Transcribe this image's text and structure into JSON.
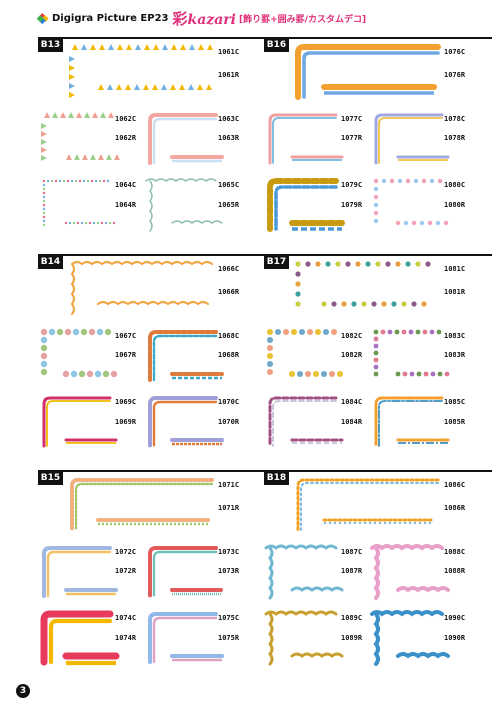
{
  "header": {
    "brand": "Digigra Picture EP23",
    "title_kanji": "彩",
    "title_roman": "kazari",
    "subtitle": "[飾り罫+囲み罫/カスタムデコ]",
    "diamond_colors": [
      "#e8303a",
      "#f2b900",
      "#2a7fd4",
      "#3bb34a"
    ]
  },
  "page_number": "3",
  "sections": [
    {
      "id": "B13",
      "codes": [
        "1061C",
        "1061R",
        "1062C",
        "1062R",
        "1063C",
        "1063R",
        "1064C",
        "1064R",
        "1065C",
        "1065R"
      ]
    },
    {
      "id": "B14",
      "codes": [
        "1066C",
        "1066R",
        "1067C",
        "1067R",
        "1068C",
        "1068R",
        "1069C",
        "1069R",
        "1070C",
        "1070R"
      ]
    },
    {
      "id": "B15",
      "codes": [
        "1071C",
        "1071R",
        "1072C",
        "1072R",
        "1073C",
        "1073R",
        "1074C",
        "1074R",
        "1075C",
        "1075R"
      ]
    },
    {
      "id": "B16",
      "codes": [
        "1076C",
        "1076R",
        "1077C",
        "1077R",
        "1078C",
        "1078R",
        "1079C",
        "1079R",
        "1080C",
        "1080R"
      ]
    },
    {
      "id": "B17",
      "codes": [
        "1081C",
        "1081R",
        "1082C",
        "1082R",
        "1083C",
        "1083R",
        "1084C",
        "1084R",
        "1085C",
        "1085R"
      ]
    },
    {
      "id": "B18",
      "codes": [
        "1086C",
        "1086R",
        "1087C",
        "1087R",
        "1088C",
        "1088R",
        "1089C",
        "1089R",
        "1090C",
        "1090R"
      ]
    }
  ]
}
